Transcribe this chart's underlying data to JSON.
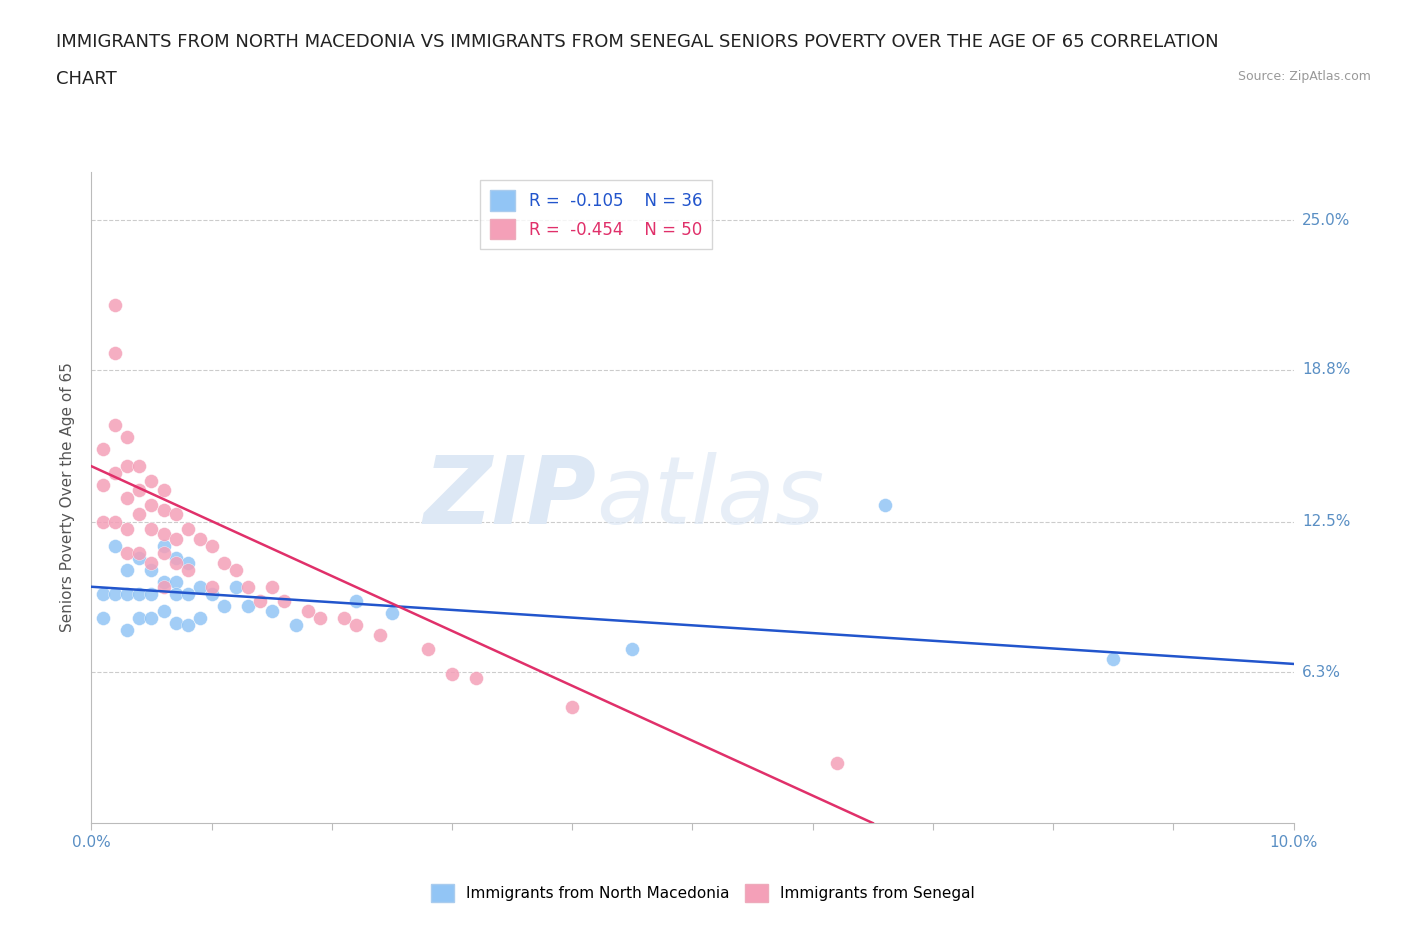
{
  "title_line1": "IMMIGRANTS FROM NORTH MACEDONIA VS IMMIGRANTS FROM SENEGAL SENIORS POVERTY OVER THE AGE OF 65 CORRELATION",
  "title_line2": "CHART",
  "source": "Source: ZipAtlas.com",
  "ylabel": "Seniors Poverty Over the Age of 65",
  "xlim": [
    0.0,
    0.1
  ],
  "ylim": [
    0.0,
    0.27
  ],
  "yticks": [
    0.0,
    0.0625,
    0.125,
    0.188,
    0.25
  ],
  "ytick_labels": [
    "",
    "6.3%",
    "12.5%",
    "18.8%",
    "25.0%"
  ],
  "color_macedonia": "#92c5f5",
  "color_senegal": "#f4a0b8",
  "line_color_macedonia": "#2255cc",
  "line_color_senegal": "#e0306a",
  "legend_macedonia_R": "-0.105",
  "legend_macedonia_N": "36",
  "legend_senegal_R": "-0.454",
  "legend_senegal_N": "50",
  "watermark_big": "ZIP",
  "watermark_small": "atlas",
  "grid_color": "#cccccc",
  "bg_color": "#ffffff",
  "title_fontsize": 13,
  "tick_label_color": "#5a8fc4",
  "macedonia_x": [
    0.001,
    0.001,
    0.002,
    0.002,
    0.003,
    0.003,
    0.003,
    0.004,
    0.004,
    0.004,
    0.005,
    0.005,
    0.005,
    0.006,
    0.006,
    0.006,
    0.007,
    0.007,
    0.007,
    0.007,
    0.008,
    0.008,
    0.008,
    0.009,
    0.009,
    0.01,
    0.011,
    0.012,
    0.013,
    0.015,
    0.017,
    0.022,
    0.025,
    0.045,
    0.066,
    0.085
  ],
  "macedonia_y": [
    0.095,
    0.085,
    0.115,
    0.095,
    0.105,
    0.095,
    0.08,
    0.11,
    0.095,
    0.085,
    0.105,
    0.095,
    0.085,
    0.115,
    0.1,
    0.088,
    0.11,
    0.1,
    0.095,
    0.083,
    0.108,
    0.095,
    0.082,
    0.098,
    0.085,
    0.095,
    0.09,
    0.098,
    0.09,
    0.088,
    0.082,
    0.092,
    0.087,
    0.072,
    0.132,
    0.068
  ],
  "senegal_x": [
    0.001,
    0.001,
    0.001,
    0.002,
    0.002,
    0.002,
    0.002,
    0.002,
    0.003,
    0.003,
    0.003,
    0.003,
    0.003,
    0.004,
    0.004,
    0.004,
    0.004,
    0.005,
    0.005,
    0.005,
    0.005,
    0.006,
    0.006,
    0.006,
    0.006,
    0.006,
    0.007,
    0.007,
    0.007,
    0.008,
    0.008,
    0.009,
    0.01,
    0.01,
    0.011,
    0.012,
    0.013,
    0.014,
    0.015,
    0.016,
    0.018,
    0.019,
    0.021,
    0.022,
    0.024,
    0.028,
    0.03,
    0.032,
    0.04,
    0.062
  ],
  "senegal_y": [
    0.155,
    0.14,
    0.125,
    0.215,
    0.195,
    0.165,
    0.145,
    0.125,
    0.16,
    0.148,
    0.135,
    0.122,
    0.112,
    0.148,
    0.138,
    0.128,
    0.112,
    0.142,
    0.132,
    0.122,
    0.108,
    0.138,
    0.13,
    0.12,
    0.112,
    0.098,
    0.128,
    0.118,
    0.108,
    0.122,
    0.105,
    0.118,
    0.115,
    0.098,
    0.108,
    0.105,
    0.098,
    0.092,
    0.098,
    0.092,
    0.088,
    0.085,
    0.085,
    0.082,
    0.078,
    0.072,
    0.062,
    0.06,
    0.048,
    0.025
  ],
  "mac_trend_x0": 0.0,
  "mac_trend_y0": 0.098,
  "mac_trend_x1": 0.1,
  "mac_trend_y1": 0.066,
  "sen_trend_x0": 0.0,
  "sen_trend_y0": 0.148,
  "sen_trend_x1": 0.065,
  "sen_trend_y1": 0.0
}
